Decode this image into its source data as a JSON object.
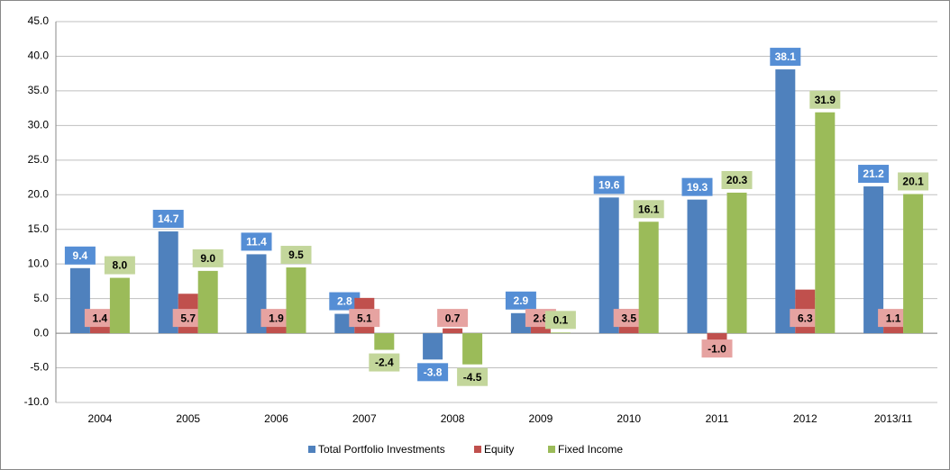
{
  "chart_data": {
    "type": "bar",
    "categories": [
      "2004",
      "2005",
      "2006",
      "2007",
      "2008",
      "2009",
      "2010",
      "2011",
      "2012",
      "2013/11"
    ],
    "series": [
      {
        "name": "Total Portfolio Investments",
        "color": "#4f81bd",
        "values": [
          9.4,
          14.7,
          11.4,
          2.8,
          -3.8,
          2.9,
          19.6,
          19.3,
          38.1,
          21.2
        ],
        "value_labels": [
          "9.4",
          "14.7",
          "11.4",
          "2.8",
          "-3.8",
          "2.9",
          "19.6",
          "19.3",
          "38.1",
          "21.2"
        ]
      },
      {
        "name": "Equity",
        "color": "#c0504d",
        "values": [
          1.4,
          5.7,
          1.9,
          5.1,
          0.7,
          2.8,
          3.5,
          -1.0,
          6.3,
          1.1
        ],
        "value_labels": [
          "1.4",
          "5.7",
          "1.9",
          "5.1",
          "0.7",
          "2.8",
          "3.5",
          "-1.0",
          "6.3",
          "1.1"
        ]
      },
      {
        "name": "Fixed Income",
        "color": "#9bbb59",
        "values": [
          8.0,
          9.0,
          9.5,
          -2.4,
          -4.5,
          0.1,
          16.1,
          20.3,
          31.9,
          20.1
        ],
        "value_labels": [
          "8.0",
          "9.0",
          "9.5",
          "-2.4",
          "-4.5",
          "0.1",
          "16.1",
          "20.3",
          "31.9",
          "20.1"
        ]
      }
    ],
    "ylim": [
      -10,
      45
    ],
    "yticks": [
      {
        "value": -10,
        "label": "-10.0"
      },
      {
        "value": -5,
        "label": "-5.0"
      },
      {
        "value": 0,
        "label": "0.0"
      },
      {
        "value": 5,
        "label": "5.0"
      },
      {
        "value": 10,
        "label": "10.0"
      },
      {
        "value": 15,
        "label": "15.0"
      },
      {
        "value": 20,
        "label": "20.0"
      },
      {
        "value": 25,
        "label": "25.0"
      },
      {
        "value": 30,
        "label": "30.0"
      },
      {
        "value": 35,
        "label": "35.0"
      },
      {
        "value": 40,
        "label": "40.0"
      },
      {
        "value": 45,
        "label": "45.0"
      }
    ],
    "grid": true,
    "legend": "bottom"
  }
}
